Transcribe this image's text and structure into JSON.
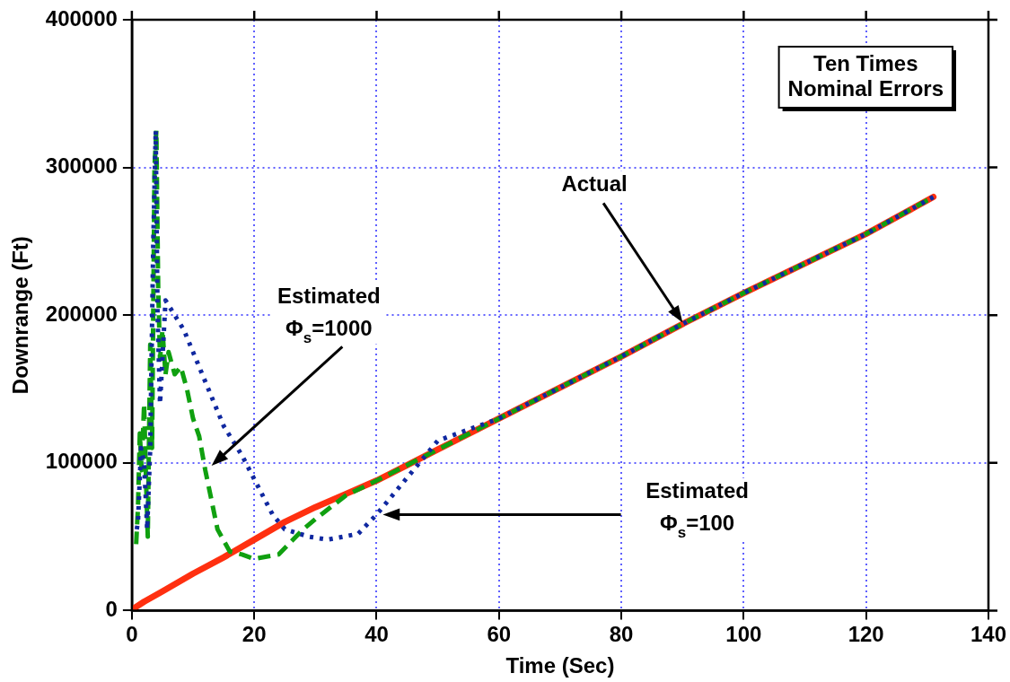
{
  "chart_data": {
    "type": "line",
    "xlabel": "Time (Sec)",
    "ylabel": "Downrange (Ft)",
    "xlim": [
      0,
      140
    ],
    "xticks": [
      0,
      20,
      40,
      60,
      80,
      100,
      120,
      140
    ],
    "ylim": [
      0,
      400000
    ],
    "yticks": [
      0,
      100000,
      200000,
      300000,
      400000
    ],
    "grid": true,
    "legend": false,
    "marker": "none",
    "series": [
      {
        "color": "#ff3010",
        "line_style": "solid",
        "x": [
          0.5,
          2,
          5,
          10,
          15,
          20,
          25,
          30,
          35,
          40,
          50,
          60,
          70,
          80,
          90,
          100,
          110,
          120,
          131
        ],
        "values": [
          2000,
          6000,
          13000,
          25000,
          36000,
          48000,
          60000,
          70000,
          79000,
          88000,
          109000,
          130000,
          151000,
          172000,
          194000,
          215000,
          235000,
          255000,
          280000
        ]
      },
      {
        "color": "#10a010",
        "line_style": "dashed",
        "x": [
          0.7,
          1,
          1.3,
          1.6,
          2,
          2.3,
          2.6,
          3,
          3.3,
          3.7,
          4,
          4.3,
          4.6,
          5,
          5.5,
          6,
          7,
          8,
          9,
          10,
          11,
          12,
          13,
          14,
          16,
          18,
          20,
          24,
          28,
          30,
          35,
          40,
          50,
          60,
          70,
          80,
          90,
          100,
          110,
          120,
          131
        ],
        "values": [
          45000,
          70000,
          120000,
          95000,
          140000,
          90000,
          50000,
          180000,
          110000,
          300000,
          325000,
          220000,
          170000,
          190000,
          160000,
          175000,
          160000,
          165000,
          150000,
          130000,
          118000,
          95000,
          75000,
          55000,
          40000,
          38000,
          35000,
          38000,
          55000,
          62000,
          78000,
          88000,
          109000,
          130000,
          151000,
          172000,
          194000,
          215000,
          235000,
          255000,
          280000
        ]
      },
      {
        "color": "#1028a0",
        "line_style": "dotted",
        "x": [
          0.8,
          1,
          1.5,
          2,
          2.5,
          3,
          3.5,
          3.9,
          4.2,
          4.6,
          5.5,
          7,
          8.5,
          10,
          11.5,
          12.5,
          15,
          18,
          20.5,
          23,
          25,
          29,
          32,
          37,
          40,
          43,
          47,
          50,
          60,
          70,
          80,
          90,
          100,
          110,
          120,
          131
        ],
        "values": [
          55000,
          60000,
          110000,
          100000,
          55000,
          110000,
          250000,
          325000,
          200000,
          140000,
          210000,
          200000,
          190000,
          175000,
          160000,
          150000,
          125000,
          105000,
          85000,
          65000,
          55000,
          50000,
          48000,
          52000,
          65000,
          80000,
          100000,
          115000,
          130000,
          151000,
          172000,
          194000,
          215000,
          235000,
          255000,
          280000
        ]
      }
    ],
    "annotations": [
      "Actual",
      "Estimated\nΦ$_{s}$=1000",
      "Estimated\nΦ$_{s}$=100",
      "Ten Times\nNominal Errors"
    ]
  }
}
